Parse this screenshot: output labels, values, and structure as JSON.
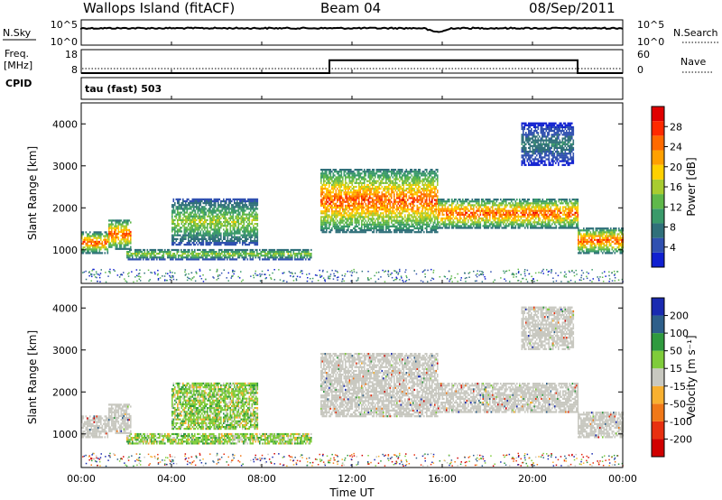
{
  "header": {
    "site": "Wallops Island (fitACF)",
    "beam": "Beam 04",
    "date": "08/Sep/2011"
  },
  "noise_panel": {
    "left_label": "N.Sky",
    "right_label": "N.Search",
    "left_ticks": [
      "10^5",
      "10^0"
    ],
    "right_ticks": [
      "10^5",
      "10^0"
    ]
  },
  "freq_panel": {
    "left_label_1": "Freq.",
    "left_label_2": "[MHz]",
    "right_label": "Nave",
    "cpid_label": "CPID",
    "left_ticks": [
      "18",
      "8"
    ],
    "right_ticks": [
      "60",
      "0"
    ],
    "program_text": "tau (fast) 503"
  },
  "time_axis": {
    "label": "Time UT",
    "ticks": [
      "00:00",
      "04:00",
      "08:00",
      "12:00",
      "16:00",
      "20:00",
      "00:00"
    ]
  },
  "power_panel": {
    "ylabel": "Slant Range [km]",
    "yticks": [
      "1000",
      "2000",
      "3000",
      "4000"
    ],
    "colorbar_label": "Power [dB]",
    "colorbar_ticks": [
      "4",
      "8",
      "12",
      "16",
      "20",
      "24",
      "28"
    ],
    "colors": [
      "#1020d0",
      "#3050b0",
      "#30707a",
      "#3a9a6a",
      "#5fb84a",
      "#a8cc30",
      "#ffd000",
      "#ffa000",
      "#ff6a00",
      "#ff2a00",
      "#e00000"
    ]
  },
  "velocity_panel": {
    "ylabel": "Slant Range [km]",
    "yticks": [
      "1000",
      "2000",
      "3000",
      "4000"
    ],
    "colorbar_label": "Velocity [m s⁻¹]",
    "colorbar_ticks": [
      "200",
      "100",
      "50",
      "15",
      "-15",
      "-50",
      "-100",
      "-200"
    ],
    "colors": [
      "#1a2ab0",
      "#2e5f8a",
      "#2f9a3e",
      "#7fcc3a",
      "#c8c8c0",
      "#f8b030",
      "#f07818",
      "#e83010",
      "#d00000"
    ]
  },
  "chart_data": {
    "type": "heatmap",
    "x_range_hours": [
      0,
      24
    ],
    "y_range_km": [
      200,
      4500
    ],
    "regions": [
      {
        "t0": 0.0,
        "t1": 1.2,
        "r0": 900,
        "r1": 1400,
        "power": "high"
      },
      {
        "t0": 1.2,
        "t1": 2.2,
        "r0": 1000,
        "r1": 1700,
        "power": "high"
      },
      {
        "t0": 2.0,
        "t1": 10.2,
        "r0": 750,
        "r1": 1000,
        "power": "medium"
      },
      {
        "t0": 4.0,
        "t1": 7.8,
        "r0": 1100,
        "r1": 2200,
        "power": "medium"
      },
      {
        "t0": 10.6,
        "t1": 15.8,
        "r0": 1400,
        "r1": 2900,
        "power": "high"
      },
      {
        "t0": 15.8,
        "t1": 22.0,
        "r0": 1500,
        "r1": 2200,
        "power": "high"
      },
      {
        "t0": 19.5,
        "t1": 21.8,
        "r0": 3000,
        "r1": 4000,
        "power": "low"
      },
      {
        "t0": 22.0,
        "t1": 24.0,
        "r0": 900,
        "r1": 1500,
        "power": "high"
      }
    ],
    "freq_steps": [
      {
        "t0": 0,
        "t1": 11,
        "mhz": 8
      },
      {
        "t0": 11,
        "t1": 22,
        "mhz": 14.5
      },
      {
        "t0": 22,
        "t1": 24,
        "mhz": 8
      }
    ]
  }
}
